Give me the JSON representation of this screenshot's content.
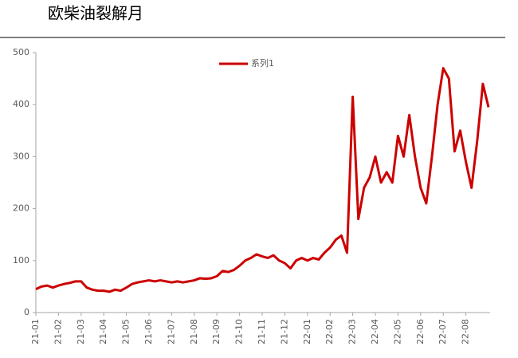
{
  "chart_data": {
    "type": "line",
    "title": "欧柴油裂解月",
    "categories": [
      "21-01",
      null,
      null,
      null,
      "21-02",
      null,
      null,
      null,
      "21-03",
      null,
      null,
      null,
      "21-04",
      null,
      null,
      null,
      "21-05",
      null,
      null,
      null,
      "21-06",
      null,
      null,
      null,
      "21-07",
      null,
      null,
      null,
      "21-08",
      null,
      null,
      null,
      "21-09",
      null,
      null,
      null,
      "21-10",
      null,
      null,
      null,
      "21-11",
      null,
      null,
      null,
      "21-12",
      null,
      null,
      null,
      "22-01",
      null,
      null,
      null,
      "22-02",
      null,
      null,
      null,
      "22-03",
      null,
      null,
      null,
      "22-04",
      null,
      null,
      null,
      "22-05",
      null,
      null,
      null,
      "22-06",
      null,
      null,
      null,
      "22-07",
      null,
      null,
      null,
      "22-08",
      null,
      null,
      null,
      null
    ],
    "series": [
      {
        "name": "系列1",
        "color": "#cc0000",
        "values": [
          45,
          50,
          52,
          48,
          52,
          55,
          57,
          60,
          60,
          48,
          44,
          42,
          42,
          40,
          44,
          42,
          48,
          55,
          58,
          60,
          62,
          60,
          62,
          60,
          58,
          60,
          58,
          60,
          62,
          66,
          65,
          66,
          70,
          80,
          78,
          82,
          90,
          100,
          105,
          112,
          108,
          105,
          110,
          100,
          95,
          85,
          100,
          105,
          100,
          105,
          102,
          115,
          125,
          140,
          148,
          115,
          415,
          180,
          240,
          260,
          300,
          250,
          270,
          250,
          340,
          300,
          380,
          300,
          240,
          210,
          300,
          400,
          470,
          450,
          310,
          350,
          290,
          240,
          330,
          440,
          395
        ]
      }
    ],
    "ylim": [
      0,
      500
    ],
    "yticks": [
      0,
      100,
      200,
      300,
      400,
      500
    ],
    "legend": "top"
  }
}
